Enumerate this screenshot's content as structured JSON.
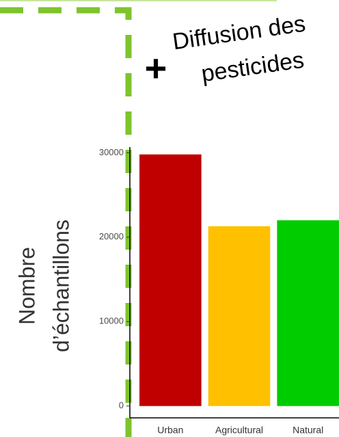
{
  "chart_data": {
    "type": "bar",
    "title": [
      "Diffusion des",
      "pesticides"
    ],
    "annotations": [
      "+"
    ],
    "y_label": [
      "Nombre",
      "d’échantillons"
    ],
    "categories": [
      "Urban",
      "Agricultural",
      "Natural"
    ],
    "values": [
      29800,
      21300,
      22000
    ],
    "colors": [
      "#c00000",
      "#ffc000",
      "#00cc00"
    ],
    "ylim": [
      -1400,
      31000
    ],
    "yticks": [
      0,
      10000,
      20000,
      30000
    ],
    "grid": false
  }
}
